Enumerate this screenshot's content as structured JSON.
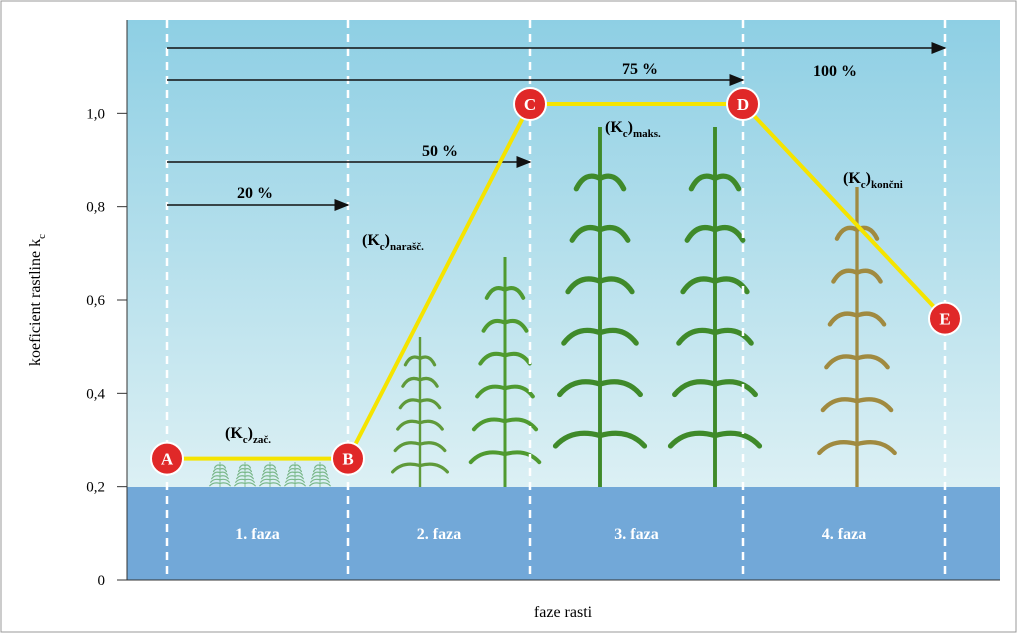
{
  "y_axis": {
    "label_parts": [
      "koeficient rastline k",
      "c"
    ],
    "range": [
      0,
      1.2
    ],
    "ticks": [
      0,
      {
        "value": 0.2,
        "label": "0,2"
      },
      {
        "value": 0.4,
        "label": "0,4"
      },
      {
        "value": 0.6,
        "label": "0,6"
      },
      {
        "value": 0.8,
        "label": "0,8"
      },
      {
        "value": 1.0,
        "label": "1,0"
      }
    ]
  },
  "x_axis": {
    "label": "faze rasti"
  },
  "phases": [
    "1. faza",
    "2. faza",
    "3. faza",
    "4. faza"
  ],
  "arrows": [
    "20 %",
    "50 %",
    "75 %",
    "100 %"
  ],
  "points": [
    {
      "label": "A",
      "kc": 0.26
    },
    {
      "label": "B",
      "kc": 0.26
    },
    {
      "label": "C",
      "kc": 1.02
    },
    {
      "label": "D",
      "kc": 1.02
    },
    {
      "label": "E",
      "kc": 0.56
    }
  ],
  "kc_labels": [
    {
      "parts": [
        "(K",
        "c",
        ")",
        "zač."
      ]
    },
    {
      "parts": [
        "(K",
        "c",
        ")",
        "narašč."
      ]
    },
    {
      "parts": [
        "(K",
        "c",
        ")",
        "maks."
      ]
    },
    {
      "parts": [
        "(K",
        "c",
        ")",
        "končni"
      ]
    }
  ]
}
